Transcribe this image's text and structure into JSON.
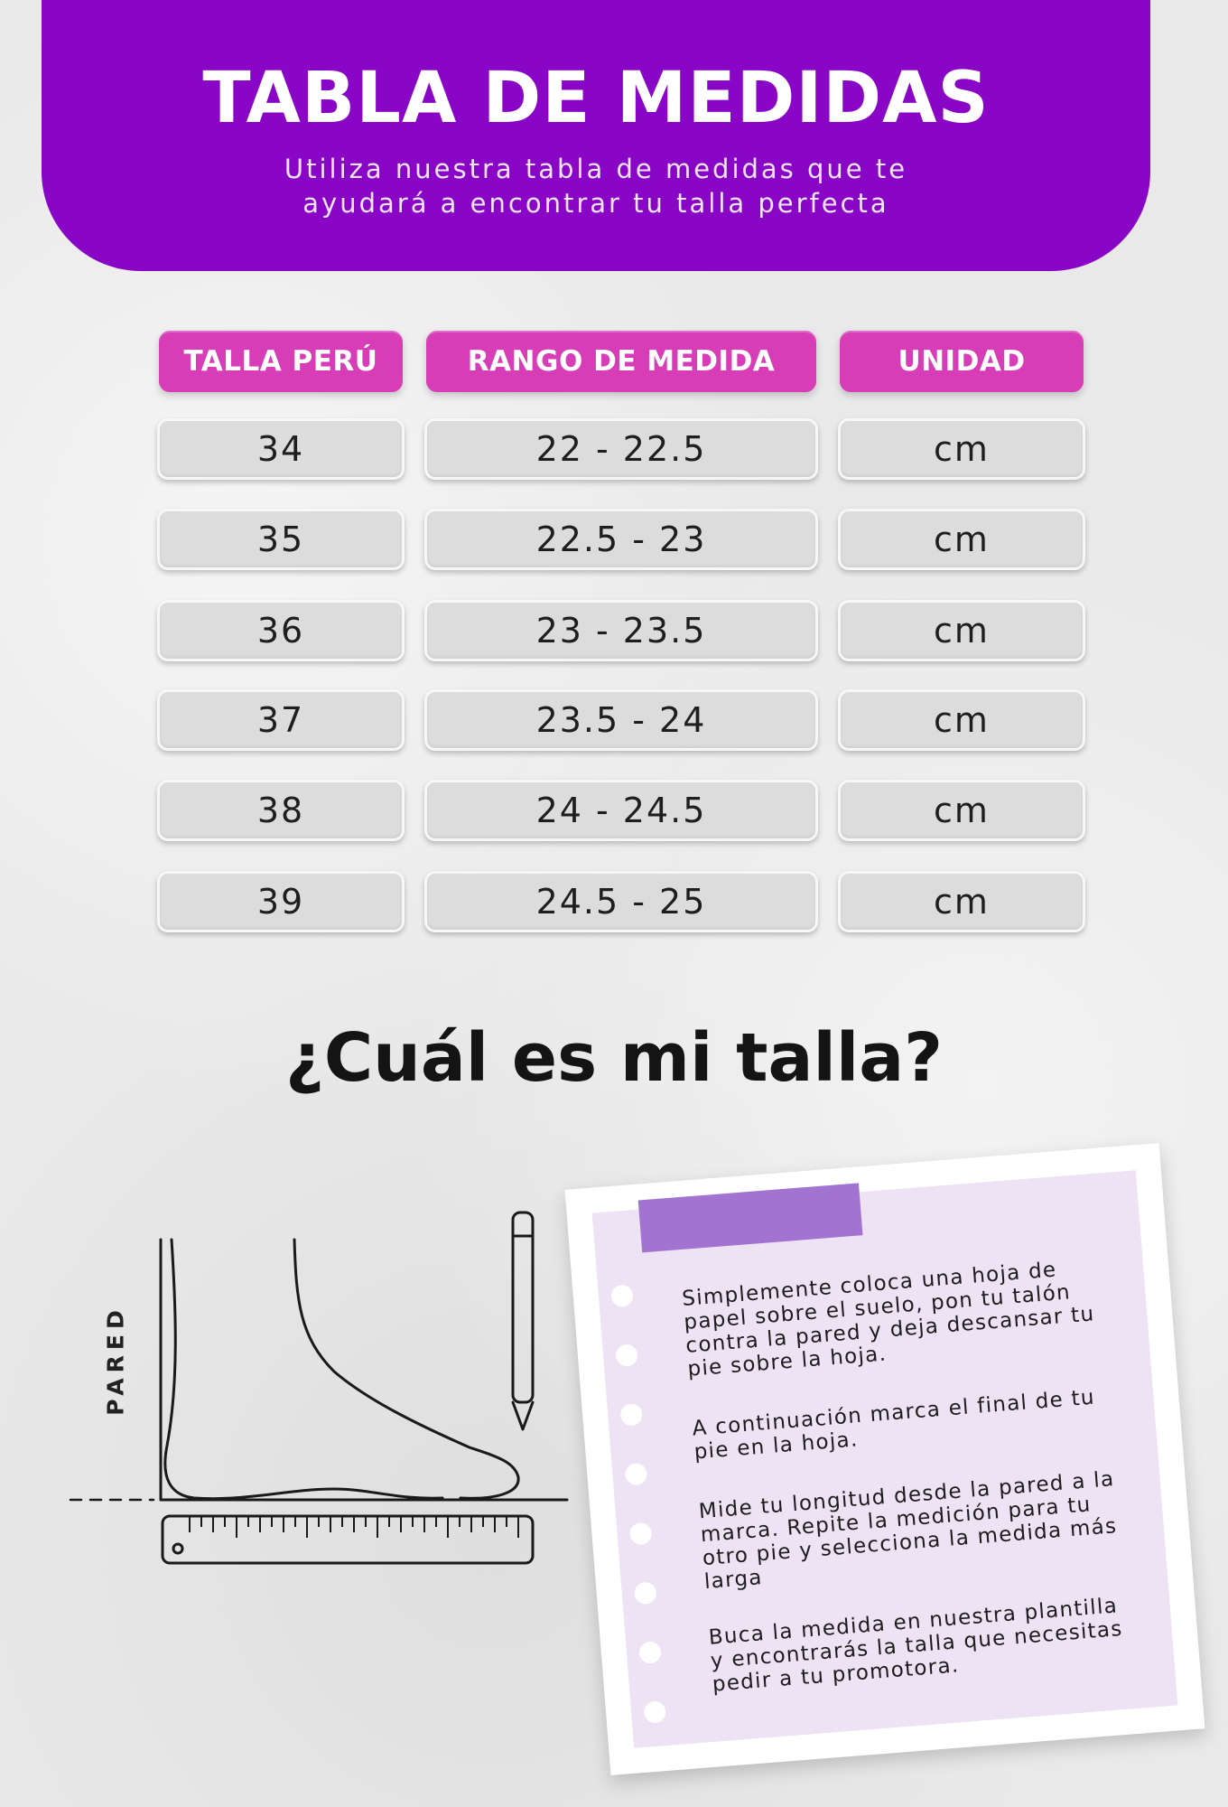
{
  "header": {
    "title": "TABLA DE MEDIDAS",
    "subtitle_line1": "Utiliza nuestra tabla de medidas que te",
    "subtitle_line2": "ayudará a encontrar tu talla perfecta",
    "color": "#8a06c6"
  },
  "table": {
    "header_color": "#d63db7",
    "columns": [
      "TALLA PERÚ",
      "RANGO DE MEDIDA",
      "UNIDAD"
    ],
    "rows": [
      [
        "34",
        "22 - 22.5",
        "cm"
      ],
      [
        "35",
        "22.5 - 23",
        "cm"
      ],
      [
        "36",
        "23 - 23.5",
        "cm"
      ],
      [
        "37",
        "23.5 - 24",
        "cm"
      ],
      [
        "38",
        "24 - 24.5",
        "cm"
      ],
      [
        "39",
        "24.5 - 25",
        "cm"
      ]
    ]
  },
  "guide": {
    "question": "¿Cuál es mi talla?",
    "wall_label": "PARED",
    "illustration_icon": "foot-measure-icon",
    "steps": [
      "Simplemente coloca una hoja de papel sobre el suelo, pon tu talón contra la pared y deja descansar tu pie sobre la hoja.",
      "A continuación marca el final de tu pie en la hoja.",
      "Mide tu longitud desde la pared a la marca. Repite la medición para tu otro pie y selecciona la medida más larga",
      "Buca la medida en nuestra plantilla y encontrarás la talla que necesitas pedir a tu promotora."
    ],
    "note_color": "#eee3f5",
    "tape_color": "#9d6dcf"
  }
}
